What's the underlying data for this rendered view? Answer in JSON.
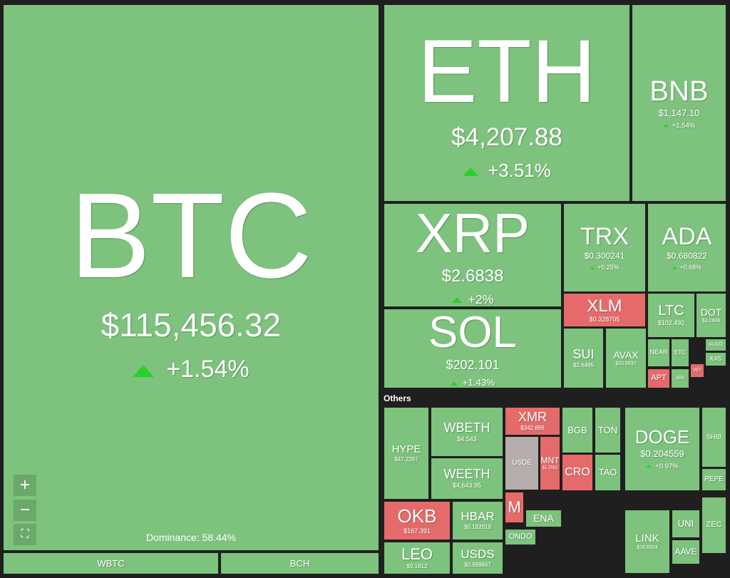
{
  "groups": {
    "others": "Others"
  },
  "dominance": "Dominance: 58.44%",
  "tiles": [
    {
      "symbol": "BTC",
      "price": "$115,456.32",
      "change": "+1.54%"
    },
    {
      "symbol": "WBTC"
    },
    {
      "symbol": "BCH"
    },
    {
      "symbol": "ETH",
      "price": "$4,207.88",
      "change": "+3.51%"
    },
    {
      "symbol": "BNB",
      "price": "$1,147.10",
      "change": "+1.54%"
    },
    {
      "symbol": "XRP",
      "price": "$2.6838",
      "change": "+2%"
    },
    {
      "symbol": "SOL",
      "price": "$202.101",
      "change": "+1.43%"
    },
    {
      "symbol": "TRX",
      "price": "$0.300241",
      "change": "+0.25%"
    },
    {
      "symbol": "ADA",
      "price": "$0.680822",
      "change": "+0.68%"
    },
    {
      "symbol": "XLM",
      "price": "$0.328705"
    },
    {
      "symbol": "LTC",
      "price": "$102.492"
    },
    {
      "symbol": "DOT",
      "price": "$3.2848"
    },
    {
      "symbol": "SUI",
      "price": "$2.6495"
    },
    {
      "symbol": "AVAX",
      "price": "$20.6937"
    },
    {
      "symbol": "NEAR"
    },
    {
      "symbol": "ETC"
    },
    {
      "symbol": "ALGO"
    },
    {
      "symbol": "KAS"
    },
    {
      "symbol": "APT"
    },
    {
      "symbol": "ARB"
    },
    {
      "symbol": "VET"
    },
    {
      "symbol": "HYPE",
      "price": "$47.2267"
    },
    {
      "symbol": "WBETH",
      "price": "$4,543"
    },
    {
      "symbol": "WEETH",
      "price": "$4,643.95"
    },
    {
      "symbol": "XMR",
      "price": "$342.886"
    },
    {
      "symbol": "USDE"
    },
    {
      "symbol": "MNT",
      "price": "$1.7052"
    },
    {
      "symbol": "BGB"
    },
    {
      "symbol": "TON"
    },
    {
      "symbol": "CRO"
    },
    {
      "symbol": "TAO"
    },
    {
      "symbol": "OKB",
      "price": "$167.391"
    },
    {
      "symbol": "LEO",
      "price": "$9.1912"
    },
    {
      "symbol": "HBAR",
      "price": "$0.182019"
    },
    {
      "symbol": "USDS",
      "price": "$0.999667"
    },
    {
      "symbol": "M"
    },
    {
      "symbol": "ENA"
    },
    {
      "symbol": "ONDO"
    },
    {
      "symbol": "DOGE",
      "price": "$0.204559",
      "change": "+0.97%"
    },
    {
      "symbol": "SHIB"
    },
    {
      "symbol": "PEPE"
    },
    {
      "symbol": "LINK",
      "price": "$18.6524"
    },
    {
      "symbol": "UNI"
    },
    {
      "symbol": "AAVE"
    },
    {
      "symbol": "ZEC"
    }
  ]
}
